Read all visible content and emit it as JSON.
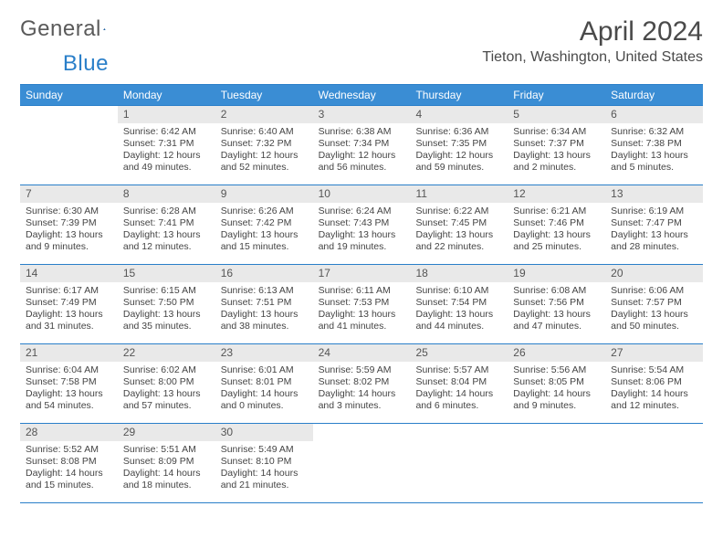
{
  "logo": {
    "text1": "General",
    "text2": "Blue"
  },
  "title": "April 2024",
  "location": "Tieton, Washington, United States",
  "colors": {
    "header_bg": "#3a8dd4",
    "header_text": "#ffffff",
    "border": "#2a7fc9",
    "daynum_bg": "#e9e9e9",
    "text": "#444444"
  },
  "days_of_week": [
    "Sunday",
    "Monday",
    "Tuesday",
    "Wednesday",
    "Thursday",
    "Friday",
    "Saturday"
  ],
  "weeks": [
    [
      {
        "empty": true
      },
      {
        "n": "1",
        "sr": "Sunrise: 6:42 AM",
        "ss": "Sunset: 7:31 PM",
        "d1": "Daylight: 12 hours",
        "d2": "and 49 minutes."
      },
      {
        "n": "2",
        "sr": "Sunrise: 6:40 AM",
        "ss": "Sunset: 7:32 PM",
        "d1": "Daylight: 12 hours",
        "d2": "and 52 minutes."
      },
      {
        "n": "3",
        "sr": "Sunrise: 6:38 AM",
        "ss": "Sunset: 7:34 PM",
        "d1": "Daylight: 12 hours",
        "d2": "and 56 minutes."
      },
      {
        "n": "4",
        "sr": "Sunrise: 6:36 AM",
        "ss": "Sunset: 7:35 PM",
        "d1": "Daylight: 12 hours",
        "d2": "and 59 minutes."
      },
      {
        "n": "5",
        "sr": "Sunrise: 6:34 AM",
        "ss": "Sunset: 7:37 PM",
        "d1": "Daylight: 13 hours",
        "d2": "and 2 minutes."
      },
      {
        "n": "6",
        "sr": "Sunrise: 6:32 AM",
        "ss": "Sunset: 7:38 PM",
        "d1": "Daylight: 13 hours",
        "d2": "and 5 minutes."
      }
    ],
    [
      {
        "n": "7",
        "sr": "Sunrise: 6:30 AM",
        "ss": "Sunset: 7:39 PM",
        "d1": "Daylight: 13 hours",
        "d2": "and 9 minutes."
      },
      {
        "n": "8",
        "sr": "Sunrise: 6:28 AM",
        "ss": "Sunset: 7:41 PM",
        "d1": "Daylight: 13 hours",
        "d2": "and 12 minutes."
      },
      {
        "n": "9",
        "sr": "Sunrise: 6:26 AM",
        "ss": "Sunset: 7:42 PM",
        "d1": "Daylight: 13 hours",
        "d2": "and 15 minutes."
      },
      {
        "n": "10",
        "sr": "Sunrise: 6:24 AM",
        "ss": "Sunset: 7:43 PM",
        "d1": "Daylight: 13 hours",
        "d2": "and 19 minutes."
      },
      {
        "n": "11",
        "sr": "Sunrise: 6:22 AM",
        "ss": "Sunset: 7:45 PM",
        "d1": "Daylight: 13 hours",
        "d2": "and 22 minutes."
      },
      {
        "n": "12",
        "sr": "Sunrise: 6:21 AM",
        "ss": "Sunset: 7:46 PM",
        "d1": "Daylight: 13 hours",
        "d2": "and 25 minutes."
      },
      {
        "n": "13",
        "sr": "Sunrise: 6:19 AM",
        "ss": "Sunset: 7:47 PM",
        "d1": "Daylight: 13 hours",
        "d2": "and 28 minutes."
      }
    ],
    [
      {
        "n": "14",
        "sr": "Sunrise: 6:17 AM",
        "ss": "Sunset: 7:49 PM",
        "d1": "Daylight: 13 hours",
        "d2": "and 31 minutes."
      },
      {
        "n": "15",
        "sr": "Sunrise: 6:15 AM",
        "ss": "Sunset: 7:50 PM",
        "d1": "Daylight: 13 hours",
        "d2": "and 35 minutes."
      },
      {
        "n": "16",
        "sr": "Sunrise: 6:13 AM",
        "ss": "Sunset: 7:51 PM",
        "d1": "Daylight: 13 hours",
        "d2": "and 38 minutes."
      },
      {
        "n": "17",
        "sr": "Sunrise: 6:11 AM",
        "ss": "Sunset: 7:53 PM",
        "d1": "Daylight: 13 hours",
        "d2": "and 41 minutes."
      },
      {
        "n": "18",
        "sr": "Sunrise: 6:10 AM",
        "ss": "Sunset: 7:54 PM",
        "d1": "Daylight: 13 hours",
        "d2": "and 44 minutes."
      },
      {
        "n": "19",
        "sr": "Sunrise: 6:08 AM",
        "ss": "Sunset: 7:56 PM",
        "d1": "Daylight: 13 hours",
        "d2": "and 47 minutes."
      },
      {
        "n": "20",
        "sr": "Sunrise: 6:06 AM",
        "ss": "Sunset: 7:57 PM",
        "d1": "Daylight: 13 hours",
        "d2": "and 50 minutes."
      }
    ],
    [
      {
        "n": "21",
        "sr": "Sunrise: 6:04 AM",
        "ss": "Sunset: 7:58 PM",
        "d1": "Daylight: 13 hours",
        "d2": "and 54 minutes."
      },
      {
        "n": "22",
        "sr": "Sunrise: 6:02 AM",
        "ss": "Sunset: 8:00 PM",
        "d1": "Daylight: 13 hours",
        "d2": "and 57 minutes."
      },
      {
        "n": "23",
        "sr": "Sunrise: 6:01 AM",
        "ss": "Sunset: 8:01 PM",
        "d1": "Daylight: 14 hours",
        "d2": "and 0 minutes."
      },
      {
        "n": "24",
        "sr": "Sunrise: 5:59 AM",
        "ss": "Sunset: 8:02 PM",
        "d1": "Daylight: 14 hours",
        "d2": "and 3 minutes."
      },
      {
        "n": "25",
        "sr": "Sunrise: 5:57 AM",
        "ss": "Sunset: 8:04 PM",
        "d1": "Daylight: 14 hours",
        "d2": "and 6 minutes."
      },
      {
        "n": "26",
        "sr": "Sunrise: 5:56 AM",
        "ss": "Sunset: 8:05 PM",
        "d1": "Daylight: 14 hours",
        "d2": "and 9 minutes."
      },
      {
        "n": "27",
        "sr": "Sunrise: 5:54 AM",
        "ss": "Sunset: 8:06 PM",
        "d1": "Daylight: 14 hours",
        "d2": "and 12 minutes."
      }
    ],
    [
      {
        "n": "28",
        "sr": "Sunrise: 5:52 AM",
        "ss": "Sunset: 8:08 PM",
        "d1": "Daylight: 14 hours",
        "d2": "and 15 minutes."
      },
      {
        "n": "29",
        "sr": "Sunrise: 5:51 AM",
        "ss": "Sunset: 8:09 PM",
        "d1": "Daylight: 14 hours",
        "d2": "and 18 minutes."
      },
      {
        "n": "30",
        "sr": "Sunrise: 5:49 AM",
        "ss": "Sunset: 8:10 PM",
        "d1": "Daylight: 14 hours",
        "d2": "and 21 minutes."
      },
      {
        "empty": true
      },
      {
        "empty": true
      },
      {
        "empty": true
      },
      {
        "empty": true
      }
    ]
  ]
}
